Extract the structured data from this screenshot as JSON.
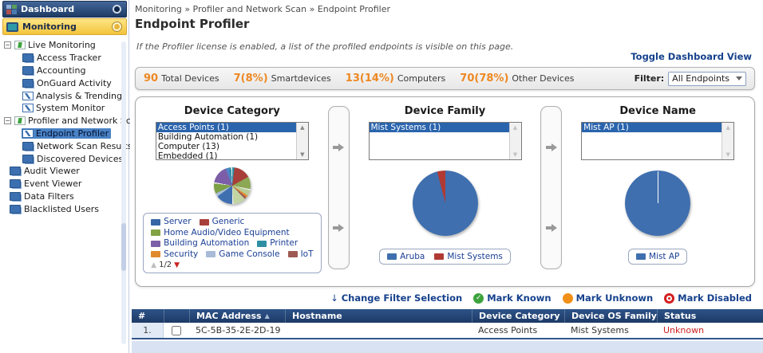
{
  "sidebar": {
    "dashboard_label": "Dashboard",
    "monitoring_label": "Monitoring",
    "tree": [
      {
        "label": "Live Monitoring"
      },
      {
        "label": "Access Tracker"
      },
      {
        "label": "Accounting"
      },
      {
        "label": "OnGuard Activity"
      },
      {
        "label": "Analysis & Trending"
      },
      {
        "label": "System Monitor"
      },
      {
        "label": "Profiler and Network Scan"
      },
      {
        "label": "Endpoint Profiler"
      },
      {
        "label": "Network Scan Results"
      },
      {
        "label": "Discovered Devices"
      },
      {
        "label": "Audit Viewer"
      },
      {
        "label": "Event Viewer"
      },
      {
        "label": "Data Filters"
      },
      {
        "label": "Blacklisted Users"
      }
    ]
  },
  "breadcrumb": {
    "text": "Monitoring » Profiler and Network Scan » Endpoint Profiler"
  },
  "page": {
    "title": "Endpoint Profiler",
    "note": "If the Profiler license is enabled, a list of the profiled endpoints is visible on this page.",
    "toggle_link": "Toggle Dashboard View"
  },
  "stats": {
    "items": [
      {
        "value": "90",
        "label": "Total Devices"
      },
      {
        "value": "7(8%)",
        "label": "Smartdevices"
      },
      {
        "value": "13(14%)",
        "label": "Computers"
      },
      {
        "value": "70(78%)",
        "label": "Other Devices"
      }
    ],
    "filter_label": "Filter:",
    "filter_value": "All Endpoints"
  },
  "panels": {
    "device_category": {
      "title": "Device Category",
      "list": [
        "Access Points (1)",
        "Building Automation (1)",
        "Computer (13)",
        "Embedded (1)"
      ],
      "pie": [
        {
          "color": "#2e8fa3",
          "pct": 2
        },
        {
          "color": "#a83e39",
          "pct": 15
        },
        {
          "color": "#8ca855",
          "pct": 11
        },
        {
          "color": "#f2f2f2",
          "pct": 1
        },
        {
          "color": "#b8cc96",
          "pct": 5
        },
        {
          "color": "#e08a2e",
          "pct": 2
        },
        {
          "color": "#9e5a52",
          "pct": 2
        },
        {
          "color": "#c2d4a2",
          "pct": 11
        },
        {
          "color": "#f2f2f2",
          "pct": 1
        },
        {
          "color": "#3f6fae",
          "pct": 15
        },
        {
          "color": "#a8bcd8",
          "pct": 3
        },
        {
          "color": "#7ba045",
          "pct": 9
        },
        {
          "color": "#f2f2f2",
          "pct": 1
        },
        {
          "color": "#7b5ea7",
          "pct": 16
        },
        {
          "color": "#4f86c6",
          "pct": 3
        },
        {
          "color": "#2e8fa3",
          "pct": 2
        },
        {
          "color": "#f2f2f2",
          "pct": 1
        }
      ],
      "legend": [
        {
          "label": "Server",
          "color": "#3565a5"
        },
        {
          "label": "Generic",
          "color": "#a83e39"
        },
        {
          "label": "Home Audio/Video Equipment",
          "color": "#82a346"
        },
        {
          "label": "Building Automation",
          "color": "#7b5ea7"
        },
        {
          "label": "Printer",
          "color": "#2e8fa3"
        },
        {
          "label": "Security",
          "color": "#e08a2e"
        },
        {
          "label": "Game Console",
          "color": "#a8bcd8"
        },
        {
          "label": "IoT",
          "color": "#9e5a52"
        }
      ],
      "legend_page": "1/2"
    },
    "device_family": {
      "title": "Device Family",
      "list": [
        "Mist Systems (1)"
      ],
      "pie": [
        {
          "color": "#3f6fae",
          "pct": 96
        },
        {
          "color": "#b03a33",
          "pct": 4
        }
      ],
      "legend": [
        {
          "label": "Aruba",
          "color": "#3f6fae"
        },
        {
          "label": "Mist Systems",
          "color": "#b03a33"
        }
      ]
    },
    "device_name": {
      "title": "Device Name",
      "list": [
        "Mist AP (1)"
      ],
      "pie": [
        {
          "color": "#3f6fae",
          "pct": 100
        }
      ],
      "legend": [
        {
          "label": "Mist AP",
          "color": "#3f6fae"
        }
      ]
    }
  },
  "actions": {
    "change_filter": "Change Filter Selection",
    "mark_known": "Mark Known",
    "mark_unknown": "Mark Unknown",
    "mark_disabled": "Mark Disabled",
    "check_glyph": "✓"
  },
  "table": {
    "headers": {
      "num": "#",
      "mac": "MAC Address",
      "sort_icon": "▲",
      "hostname": "Hostname",
      "category": "Device Category",
      "os_family": "Device OS Family",
      "status": "Status"
    },
    "rows": [
      {
        "num": "1.",
        "mac": "5C-5B-35-2E-2D-19",
        "hostname": "",
        "category": "Access Points",
        "os_family": "Mist Systems",
        "status": "Unknown"
      }
    ]
  },
  "glyphs": {
    "expander": "−",
    "scroll_up": "▲",
    "scroll_down": "▼",
    "pager": "▲",
    "down_arrow": "↓"
  },
  "colors": {
    "accent_orange": "#ee8822",
    "link_blue": "#16418c",
    "status_red": "#cc2222",
    "table_header_blue": "#24497c",
    "selection_blue": "#2a64ad"
  }
}
